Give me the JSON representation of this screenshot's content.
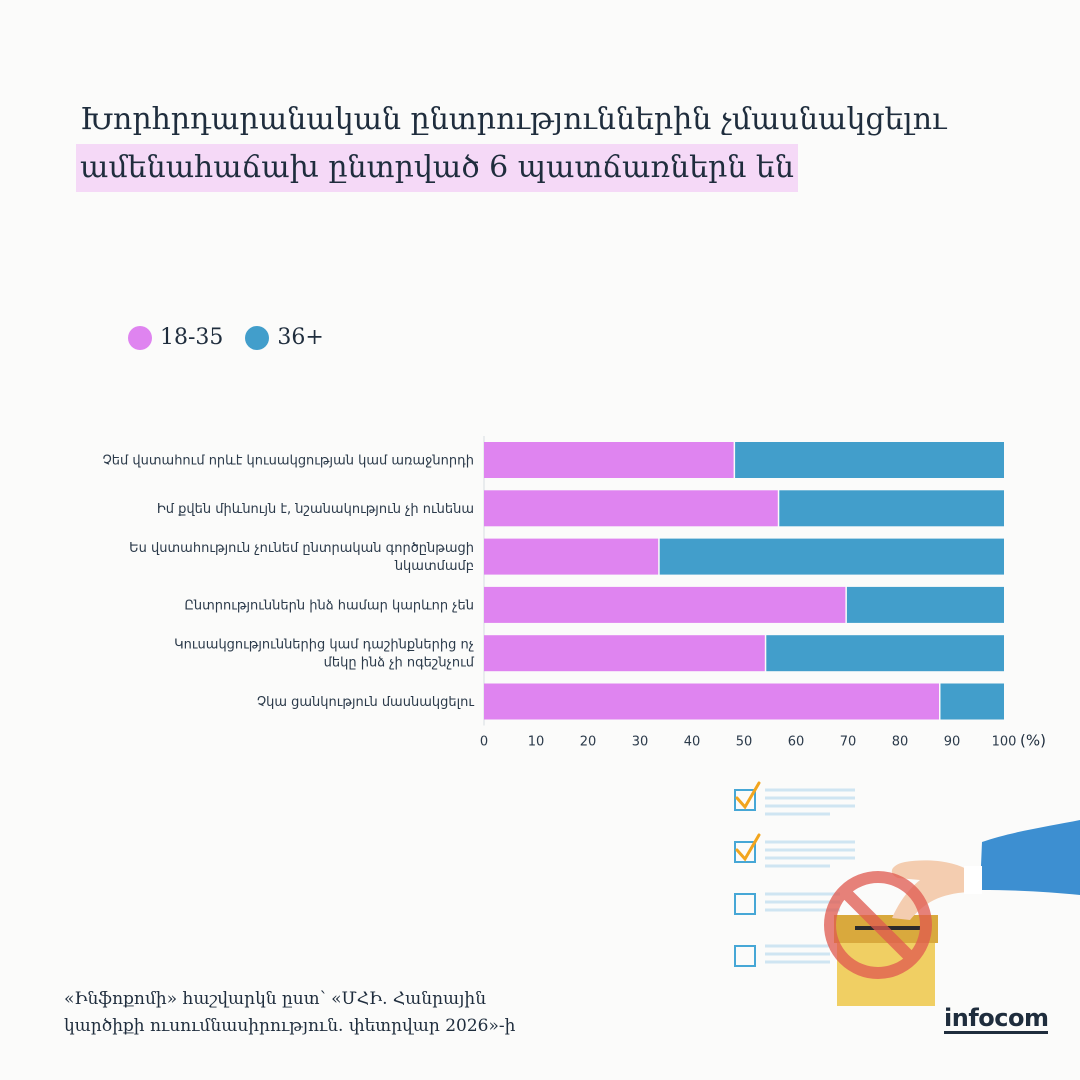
{
  "title": {
    "line1": "Խորհրդարանական ընտրություններին չմասնակցելու",
    "line2": "ամենահաճախ ընտրված 6 պատճառներն են"
  },
  "legend": [
    {
      "label": "18-35",
      "color": "#df84f0"
    },
    {
      "label": "36+",
      "color": "#429ecb"
    }
  ],
  "chart_data": {
    "type": "bar",
    "orientation": "horizontal",
    "stacked": true,
    "categories": [
      [
        "Չեմ վստահում որևէ կուսակցության կամ առաջնորդի"
      ],
      [
        "Իմ քվեն միևնույն է, նշանակություն չի ունենա"
      ],
      [
        "Ես վստահություն չունեմ ընտրական գործընթացի",
        "նկատմամբ"
      ],
      [
        "Ընտրություններն ինձ համար կարևոր չեն"
      ],
      [
        "Կուսակցություններից կամ դաշինքներից ոչ",
        "մեկը ինձ չի ոգեշնչում"
      ],
      [
        "Չկա ցանկություն մասնակցելու"
      ]
    ],
    "series": [
      {
        "name": "18-35",
        "color": "#df84f0",
        "values": [
          48,
          56.5,
          33.5,
          69.5,
          54,
          87.5
        ]
      },
      {
        "name": "36+",
        "color": "#429ecb",
        "values": [
          52,
          43.5,
          66.5,
          30.5,
          46,
          12.5
        ]
      }
    ],
    "xlim": [
      0,
      100
    ],
    "xticks": [
      0,
      10,
      20,
      30,
      40,
      50,
      60,
      70,
      80,
      90,
      100
    ],
    "xunit": "(%)",
    "grid": false
  },
  "source": {
    "line1": "«Ինֆոքոմի» հաշվարկն ըստ՝ «ՄՀԻ. Հանրային",
    "line2": "կարծիքի ուսումնասիրություն. փետրվար 2026»-ի"
  },
  "logo": "infocom",
  "illustration": {
    "checkbox_states": [
      "checked",
      "checked",
      "empty",
      "empty"
    ],
    "icons": [
      "hand-icon",
      "ballot-box-icon",
      "prohibition-icon"
    ]
  }
}
